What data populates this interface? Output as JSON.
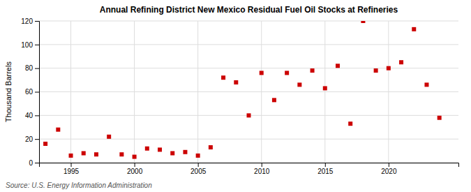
{
  "chart_data": {
    "type": "scatter",
    "title": "Annual Refining District New Mexico Residual Fuel Oil Stocks at Refineries",
    "ylabel": "Thousand Barrels",
    "source": "Source: U.S. Energy Information Administration",
    "x": [
      1993,
      1994,
      1995,
      1996,
      1997,
      1998,
      1999,
      2000,
      2001,
      2002,
      2003,
      2004,
      2005,
      2006,
      2007,
      2008,
      2009,
      2010,
      2011,
      2012,
      2013,
      2014,
      2015,
      2016,
      2017,
      2018,
      2019,
      2020,
      2021,
      2022,
      2023,
      2024
    ],
    "values": [
      16,
      28,
      6,
      8,
      7,
      22,
      7,
      5,
      12,
      11,
      8,
      9,
      6,
      13,
      72,
      68,
      40,
      76,
      53,
      76,
      66,
      78,
      63,
      82,
      33,
      120,
      78,
      80,
      85,
      113,
      66,
      38
    ],
    "color": "#cc0000",
    "marker": "square",
    "xlim": [
      1992.5,
      2025.5
    ],
    "ylim": [
      0,
      120
    ],
    "xticks": [
      1995,
      2000,
      2005,
      2010,
      2015,
      2020
    ],
    "yticks": [
      0,
      20,
      40,
      60,
      80,
      100,
      120
    ],
    "grid": true
  }
}
